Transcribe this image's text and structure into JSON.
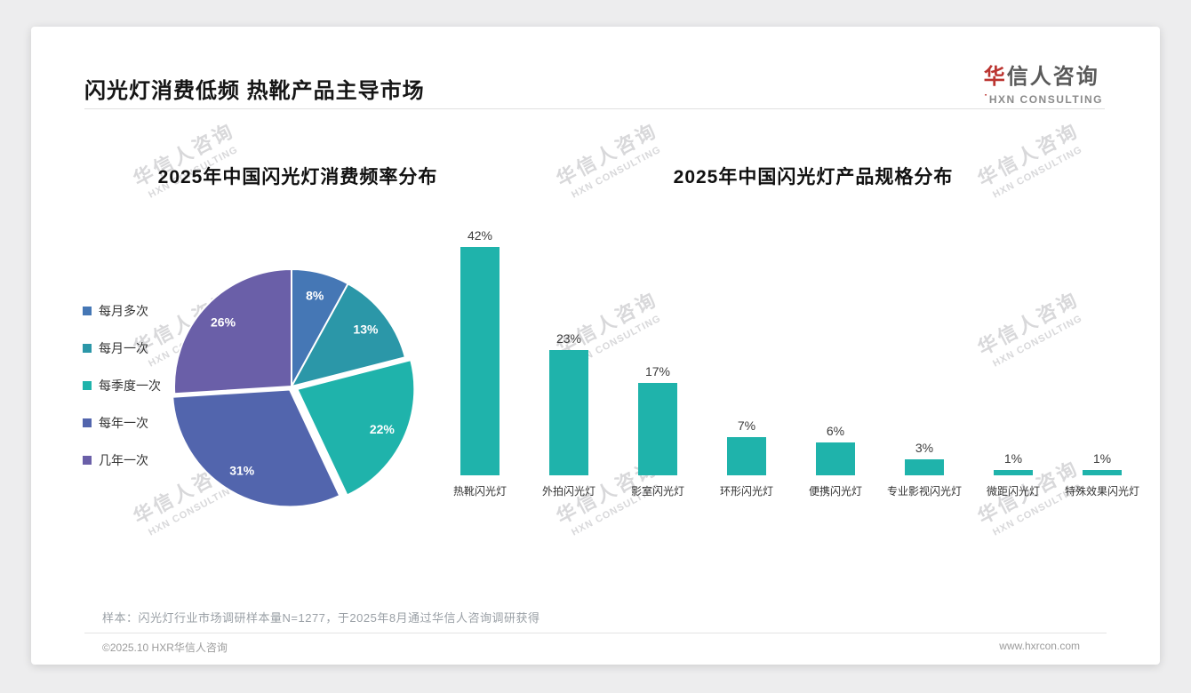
{
  "page": {
    "title": "闪光灯消费低频 热靴产品主导市场",
    "logo": {
      "name_accent": "华",
      "name_rest": "信人咨询",
      "tagline_mark": "˙",
      "tagline": "HXN CONSULTING"
    },
    "watermark": {
      "line1": "华信人咨询",
      "line2": "HXN CONSULTING"
    },
    "note": "样本：闪光灯行业市场调研样本量N=1277，于2025年8月通过华信人咨询调研获得",
    "footer": {
      "left": "©2025.10 HXR华信人咨询",
      "right": "www.hxrcon.com"
    }
  },
  "chart_data": [
    {
      "type": "pie",
      "title": "2025年中国闪光灯消费频率分布",
      "labels": [
        "每月多次",
        "每月一次",
        "每季度一次",
        "每年一次",
        "几年一次"
      ],
      "values": [
        8,
        13,
        22,
        31,
        26
      ],
      "unit": "%",
      "colors": [
        "#4577b5",
        "#2b97a8",
        "#1fb3ab",
        "#5265ad",
        "#6a5fa8"
      ],
      "legend_position": "left",
      "value_label_color": "#ffffff",
      "start_angle_deg": 0,
      "direction": "clockwise"
    },
    {
      "type": "bar",
      "title": "2025年中国闪光灯产品规格分布",
      "categories": [
        "热靴闪光灯",
        "外拍闪光灯",
        "影室闪光灯",
        "环形闪光灯",
        "便携闪光灯",
        "专业影视闪光灯",
        "微距闪光灯",
        "特殊效果闪光灯"
      ],
      "values": [
        42,
        23,
        17,
        7,
        6,
        3,
        1,
        1
      ],
      "unit": "%",
      "bar_color": "#1fb3ab",
      "ylim": [
        0,
        45
      ],
      "grid": false,
      "value_labels_shown": true
    }
  ]
}
